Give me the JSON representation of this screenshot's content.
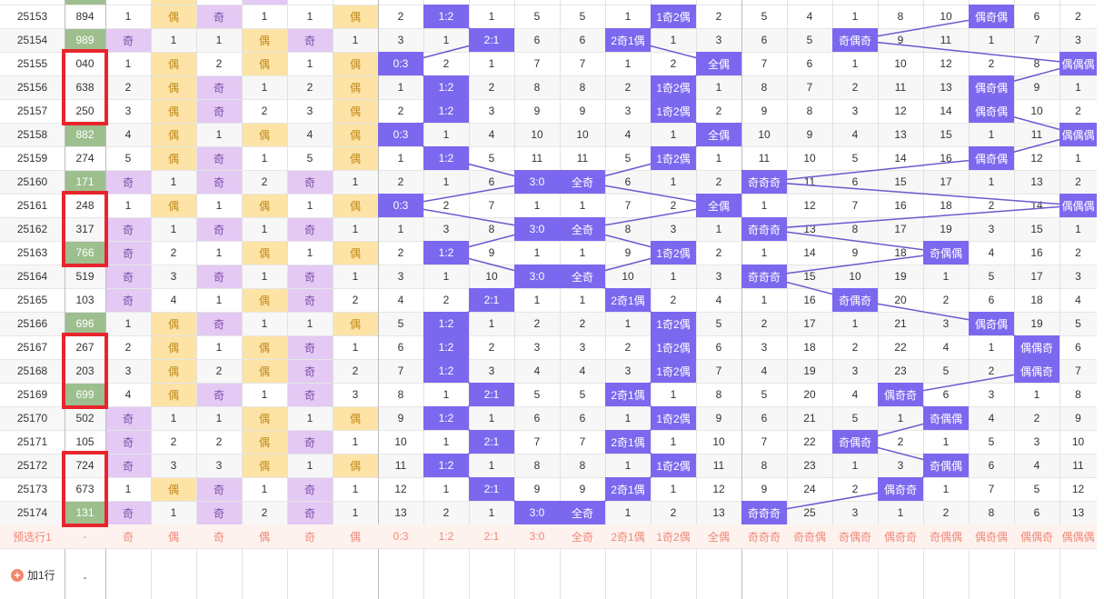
{
  "columns": [
    "issue",
    "number",
    "c3",
    "c4",
    "c5",
    "c6",
    "c7",
    "c8",
    "c9",
    "c10",
    "c11",
    "c12",
    "c13",
    "c14",
    "c15",
    "c16",
    "c17",
    "c18",
    "c19",
    "c20",
    "c21",
    "c22",
    "c23",
    "c24",
    "c25"
  ],
  "rows": [
    [
      "25153",
      "894",
      "1",
      "偶",
      "奇",
      "1",
      "1",
      "偶",
      "2",
      "1:2",
      "1",
      "5",
      "5",
      "1",
      "1奇2偶",
      "2",
      "5",
      "4",
      "1",
      "8",
      "10",
      "偶奇偶",
      "6",
      "2"
    ],
    [
      "25154",
      "989",
      "奇",
      "1",
      "1",
      "偶",
      "奇",
      "1",
      "3",
      "1",
      "2:1",
      "6",
      "6",
      "2奇1偶",
      "1",
      "3",
      "6",
      "5",
      "奇偶奇",
      "9",
      "11",
      "1",
      "7",
      "3"
    ],
    [
      "25155",
      "040",
      "1",
      "偶",
      "2",
      "偶",
      "1",
      "偶",
      "0:3",
      "2",
      "1",
      "7",
      "7",
      "1",
      "2",
      "全偶",
      "7",
      "6",
      "1",
      "10",
      "12",
      "2",
      "8",
      "偶偶偶"
    ],
    [
      "25156",
      "638",
      "2",
      "偶",
      "奇",
      "1",
      "2",
      "偶",
      "1",
      "1:2",
      "2",
      "8",
      "8",
      "2",
      "1奇2偶",
      "1",
      "8",
      "7",
      "2",
      "11",
      "13",
      "偶奇偶",
      "9",
      "1"
    ],
    [
      "25157",
      "250",
      "3",
      "偶",
      "奇",
      "2",
      "3",
      "偶",
      "2",
      "1:2",
      "3",
      "9",
      "9",
      "3",
      "1奇2偶",
      "2",
      "9",
      "8",
      "3",
      "12",
      "14",
      "偶奇偶",
      "10",
      "2"
    ],
    [
      "25158",
      "882",
      "4",
      "偶",
      "1",
      "偶",
      "4",
      "偶",
      "0:3",
      "1",
      "4",
      "10",
      "10",
      "4",
      "1",
      "全偶",
      "10",
      "9",
      "4",
      "13",
      "15",
      "1",
      "11",
      "偶偶偶"
    ],
    [
      "25159",
      "274",
      "5",
      "偶",
      "奇",
      "1",
      "5",
      "偶",
      "1",
      "1:2",
      "5",
      "11",
      "11",
      "5",
      "1奇2偶",
      "1",
      "11",
      "10",
      "5",
      "14",
      "16",
      "偶奇偶",
      "12",
      "1"
    ],
    [
      "25160",
      "171",
      "奇",
      "1",
      "奇",
      "2",
      "奇",
      "1",
      "2",
      "1",
      "6",
      "3:0",
      "全奇",
      "6",
      "1",
      "2",
      "奇奇奇",
      "11",
      "6",
      "15",
      "17",
      "1",
      "13",
      "2"
    ],
    [
      "25161",
      "248",
      "1",
      "偶",
      "1",
      "偶",
      "1",
      "偶",
      "0:3",
      "2",
      "7",
      "1",
      "1",
      "7",
      "2",
      "全偶",
      "1",
      "12",
      "7",
      "16",
      "18",
      "2",
      "14",
      "偶偶偶"
    ],
    [
      "25162",
      "317",
      "奇",
      "1",
      "奇",
      "1",
      "奇",
      "1",
      "1",
      "3",
      "8",
      "3:0",
      "全奇",
      "8",
      "3",
      "1",
      "奇奇奇",
      "13",
      "8",
      "17",
      "19",
      "3",
      "15",
      "1"
    ],
    [
      "25163",
      "766",
      "奇",
      "2",
      "1",
      "偶",
      "1",
      "偶",
      "2",
      "1:2",
      "9",
      "1",
      "1",
      "9",
      "1奇2偶",
      "2",
      "1",
      "14",
      "9",
      "18",
      "奇偶偶",
      "4",
      "16",
      "2"
    ],
    [
      "25164",
      "519",
      "奇",
      "3",
      "奇",
      "1",
      "奇",
      "1",
      "3",
      "1",
      "10",
      "3:0",
      "全奇",
      "10",
      "1",
      "3",
      "奇奇奇",
      "15",
      "10",
      "19",
      "1",
      "5",
      "17",
      "3"
    ],
    [
      "25165",
      "103",
      "奇",
      "4",
      "1",
      "偶",
      "奇",
      "2",
      "4",
      "2",
      "2:1",
      "1",
      "1",
      "2奇1偶",
      "2",
      "4",
      "1",
      "16",
      "奇偶奇",
      "20",
      "2",
      "6",
      "18",
      "4"
    ],
    [
      "25166",
      "696",
      "1",
      "偶",
      "奇",
      "1",
      "1",
      "偶",
      "5",
      "1:2",
      "1",
      "2",
      "2",
      "1",
      "1奇2偶",
      "5",
      "2",
      "17",
      "1",
      "21",
      "3",
      "偶奇偶",
      "19",
      "5"
    ],
    [
      "25167",
      "267",
      "2",
      "偶",
      "1",
      "偶",
      "奇",
      "1",
      "6",
      "1:2",
      "2",
      "3",
      "3",
      "2",
      "1奇2偶",
      "6",
      "3",
      "18",
      "2",
      "22",
      "4",
      "1",
      "偶偶奇",
      "6"
    ],
    [
      "25168",
      "203",
      "3",
      "偶",
      "2",
      "偶",
      "奇",
      "2",
      "7",
      "1:2",
      "3",
      "4",
      "4",
      "3",
      "1奇2偶",
      "7",
      "4",
      "19",
      "3",
      "23",
      "5",
      "2",
      "偶偶奇",
      "7"
    ],
    [
      "25169",
      "699",
      "4",
      "偶",
      "奇",
      "1",
      "奇",
      "3",
      "8",
      "1",
      "2:1",
      "5",
      "5",
      "2奇1偶",
      "1",
      "8",
      "5",
      "20",
      "4",
      "偶奇奇",
      "6",
      "3",
      "1",
      "8"
    ],
    [
      "25170",
      "502",
      "奇",
      "1",
      "1",
      "偶",
      "1",
      "偶",
      "9",
      "1:2",
      "1",
      "6",
      "6",
      "1",
      "1奇2偶",
      "9",
      "6",
      "21",
      "5",
      "1",
      "奇偶偶",
      "4",
      "2",
      "9"
    ],
    [
      "25171",
      "105",
      "奇",
      "2",
      "2",
      "偶",
      "奇",
      "1",
      "10",
      "1",
      "2:1",
      "7",
      "7",
      "2奇1偶",
      "1",
      "10",
      "7",
      "22",
      "奇偶奇",
      "2",
      "1",
      "5",
      "3",
      "10"
    ],
    [
      "25172",
      "724",
      "奇",
      "3",
      "3",
      "偶",
      "1",
      "偶",
      "11",
      "1:2",
      "1",
      "8",
      "8",
      "1",
      "1奇2偶",
      "11",
      "8",
      "23",
      "1",
      "3",
      "奇偶偶",
      "6",
      "4",
      "11"
    ],
    [
      "25173",
      "673",
      "1",
      "偶",
      "奇",
      "1",
      "奇",
      "1",
      "12",
      "1",
      "2:1",
      "9",
      "9",
      "2奇1偶",
      "1",
      "12",
      "9",
      "24",
      "2",
      "偶奇奇",
      "1",
      "7",
      "5",
      "12"
    ],
    [
      "25174",
      "131",
      "奇",
      "1",
      "奇",
      "2",
      "奇",
      "1",
      "13",
      "2",
      "1",
      "3:0",
      "全奇",
      "1",
      "2",
      "13",
      "奇奇奇",
      "25",
      "3",
      "1",
      "2",
      "8",
      "6",
      "13"
    ]
  ],
  "preselect": {
    "label": "预选行1",
    "number": "-",
    "cells": [
      "奇",
      "偶",
      "奇",
      "偶",
      "奇",
      "偶",
      "0:3",
      "1:2",
      "2:1",
      "3:0",
      "全奇",
      "2奇1偶",
      "1奇2偶",
      "全偶",
      "奇奇奇",
      "奇奇偶",
      "奇偶奇",
      "偶奇奇",
      "奇偶偶",
      "偶奇偶",
      "偶偶奇",
      "偶偶偶"
    ]
  },
  "add_row": {
    "label": "加1行",
    "icon": "plus-circle-icon",
    "dash": "-"
  },
  "colors": {
    "number_green": "#9dbf8e",
    "odd_purple": "#e3c9f3",
    "even_yellow": "#fde3a6",
    "hit_blue": "#7b68ee",
    "red_box": "#e8242d",
    "pre_text": "#f0897a",
    "pre_bg": "#fdf2ee"
  }
}
